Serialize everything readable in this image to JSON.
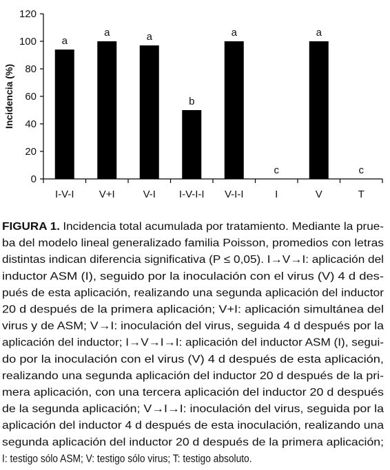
{
  "chart_data": {
    "type": "bar",
    "y_label": "Incidencia (%)",
    "categories": [
      "I-V-I",
      "V+I",
      "V-I",
      "I-V-I-I",
      "V-I-I",
      "I",
      "V",
      "T"
    ],
    "values": [
      94,
      100,
      97,
      50,
      100,
      0,
      100,
      0
    ],
    "letters": [
      "a",
      "a",
      "a",
      "b",
      "a",
      "c",
      "a",
      "c"
    ],
    "color": "#000000",
    "ylim": [
      0,
      120
    ],
    "yticks": [
      0,
      20,
      40,
      60,
      80,
      100,
      120
    ]
  },
  "caption": {
    "label": "FIGURA 1.",
    "lines": [
      "Incidencia total acumulada por tratamiento. Mediante la prue-",
      "ba del modelo lineal generalizado familia Poisson, promedios con letras",
      "distintas indican diferencia significativa (P ≤ 0,05). I→V→I: aplicación del",
      "inductor ASM (I), seguido por la inoculación con el virus (V) 4 d des-",
      "pués de esta aplicación, realizando una segunda aplicación del inductor",
      "20 d después de la primera aplicación; V+I: aplicación simultánea del",
      "virus y de ASM; V→I: inoculación del virus, seguida 4 d después por la",
      "aplicación del inductor; I→V→I→I: aplicación del inductor ASM (I), segui-",
      "do por la inoculación con el virus (V) 4 d después de esta aplicación,",
      "realizando una segunda aplicación del inductor 20 d después de la pri-",
      "mera aplicación, con una tercera aplicación del inductor 20 d después",
      "de la segunda aplicación; V→I→I: inoculación del virus, seguida por la",
      "aplicación del inductor 4 d después de esta inoculación, realizando una",
      "segunda aplicación del inductor 20 d después de la primera aplicación;",
      "I: testigo sólo ASM; V: testigo sólo virus; T: testigo absoluto."
    ]
  }
}
